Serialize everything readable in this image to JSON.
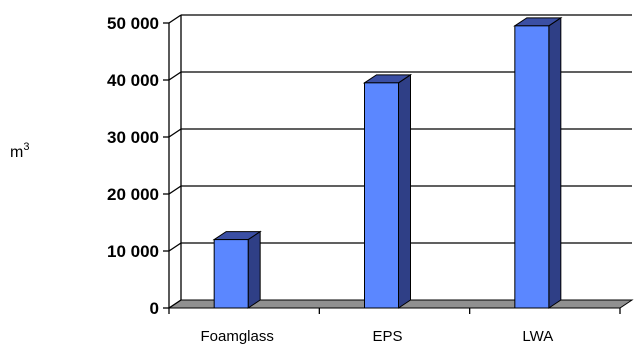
{
  "chart_data": {
    "type": "bar",
    "categories": [
      "Foamglass",
      "EPS",
      "LWA"
    ],
    "values": [
      12000,
      39500,
      49500
    ],
    "ylim": [
      0,
      50000
    ],
    "yticks": [
      0,
      10000,
      20000,
      30000,
      40000,
      50000
    ],
    "ytick_labels": [
      "0",
      "10 000",
      "20 000",
      "30 000",
      "40 000",
      "50 000"
    ],
    "ylabel": "m",
    "ylabel_superscript": "3",
    "xlabel": "",
    "title": "",
    "grid": true,
    "legend": "none",
    "colors": {
      "bar_front": "#5b87ff",
      "bar_side": "#2f3f86",
      "bar_top": "#3b4fa4",
      "floor": "#909090",
      "grid": "#000000"
    }
  }
}
